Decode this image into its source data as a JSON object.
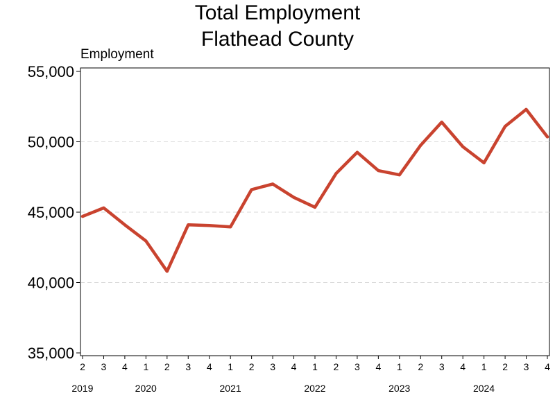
{
  "chart_data": {
    "type": "line",
    "title": "Total Employment",
    "subtitle": "Flathead County",
    "ylabel": "Employment",
    "xlabel": "",
    "ylim": [
      35000,
      55000
    ],
    "yticks": [
      35000,
      40000,
      45000,
      50000,
      55000
    ],
    "ytick_labels": [
      "35,000",
      "40,000",
      "45,000",
      "50,000",
      "55,000"
    ],
    "x": [
      "2019 Q2",
      "2019 Q3",
      "2019 Q4",
      "2020 Q1",
      "2020 Q2",
      "2020 Q3",
      "2020 Q4",
      "2021 Q1",
      "2021 Q2",
      "2021 Q3",
      "2021 Q4",
      "2022 Q1",
      "2022 Q2",
      "2022 Q3",
      "2022 Q4",
      "2023 Q1",
      "2023 Q2",
      "2023 Q3",
      "2023 Q4",
      "2024 Q1",
      "2024 Q2",
      "2024 Q3",
      "2024 Q4"
    ],
    "quarter_labels": [
      "2",
      "3",
      "4",
      "1",
      "2",
      "3",
      "4",
      "1",
      "2",
      "3",
      "4",
      "1",
      "2",
      "3",
      "4",
      "1",
      "2",
      "3",
      "4",
      "1",
      "2",
      "3",
      "4"
    ],
    "year_labels": [
      {
        "label": "2019",
        "quarter_index": 0
      },
      {
        "label": "2020",
        "quarter_index": 3
      },
      {
        "label": "2021",
        "quarter_index": 7
      },
      {
        "label": "2022",
        "quarter_index": 11
      },
      {
        "label": "2023",
        "quarter_index": 15
      },
      {
        "label": "2024",
        "quarter_index": 19
      }
    ],
    "series": [
      {
        "values": [
          44700,
          45300,
          44100,
          42950,
          40800,
          44100,
          44050,
          43950,
          46600,
          47000,
          46050,
          45350,
          47750,
          49250,
          47950,
          47650,
          49750,
          51400,
          49650,
          48500,
          51100,
          52300,
          50350
        ],
        "color": "#c9432f"
      }
    ],
    "grid": "horizontal dashed",
    "legend": "none"
  }
}
